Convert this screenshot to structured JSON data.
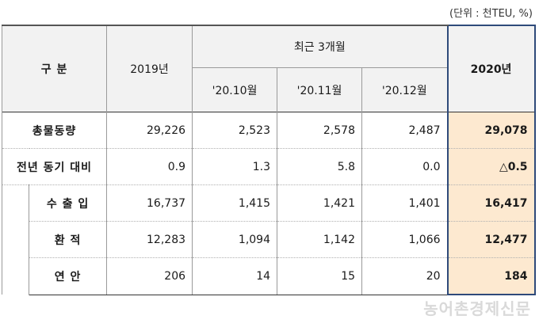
{
  "unit": "(단위 : 천TEU, %)",
  "header": {
    "col_label": "구 분",
    "year2019": "2019년",
    "recent_group": "최근 3개월",
    "months": [
      "'20.10월",
      "'20.11월",
      "'20.12월"
    ],
    "year2020": "2020년"
  },
  "rows": [
    {
      "label": "총물동량",
      "y2019": "29,226",
      "m1": "2,523",
      "m2": "2,578",
      "m3": "2,487",
      "y2020": "29,078"
    },
    {
      "label": "전년 동기 대비",
      "y2019": "0.9",
      "m1": "1.3",
      "m2": "5.8",
      "m3": "0.0",
      "y2020": "△0.5"
    },
    {
      "label": "수 출 입",
      "y2019": "16,737",
      "m1": "1,415",
      "m2": "1,421",
      "m3": "1,401",
      "y2020": "16,417"
    },
    {
      "label": "환  적",
      "y2019": "12,283",
      "m1": "1,094",
      "m2": "1,142",
      "m3": "1,066",
      "y2020": "12,477"
    },
    {
      "label": "연  안",
      "y2019": "206",
      "m1": "14",
      "m2": "15",
      "m3": "20",
      "y2020": "184"
    }
  ],
  "watermark": "농어촌경제신문"
}
